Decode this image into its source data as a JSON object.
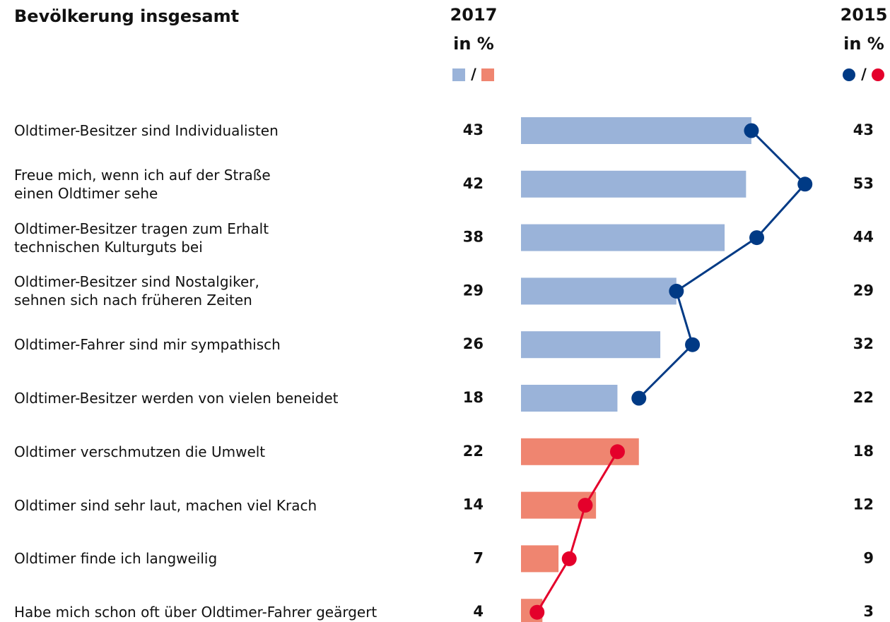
{
  "chart_data": {
    "type": "bar_dot",
    "title": "Bevölkerung insgesamt",
    "unit": "in %",
    "legend_separator": "/",
    "categories": [
      "Oldtimer-Besitzer sind Individualisten",
      "Freue mich, wenn ich auf der Straße\neinen Oldtimer sehe",
      "Oldtimer-Besitzer tragen zum Erhalt\ntechnischen Kulturguts bei",
      "Oldtimer-Besitzer sind Nostalgiker,\nsehnen sich nach früheren Zeiten",
      "Oldtimer-Fahrer sind mir sympathisch",
      "Oldtimer-Besitzer werden von vielen beneidet",
      "Oldtimer verschmutzen die Umwelt",
      "Oldtimer sind sehr laut, machen viel Krach",
      "Oldtimer finde ich langweilig",
      "Habe mich schon oft über Oldtimer-Fahrer geärgert"
    ],
    "series": [
      {
        "name": "2017",
        "values": [
          43,
          42,
          38,
          29,
          26,
          18,
          22,
          14,
          7,
          4
        ],
        "colors": [
          "#9ab3d9",
          "#9ab3d9",
          "#9ab3d9",
          "#9ab3d9",
          "#9ab3d9",
          "#9ab3d9",
          "#ef8570",
          "#ef8570",
          "#ef8570",
          "#ef8570"
        ]
      },
      {
        "name": "2015",
        "values": [
          43,
          53,
          44,
          29,
          32,
          22,
          18,
          12,
          9,
          3
        ],
        "colors": [
          "#003a85",
          "#003a85",
          "#003a85",
          "#003a85",
          "#003a85",
          "#003a85",
          "#e4002b",
          "#e4002b",
          "#e4002b",
          "#e4002b"
        ]
      }
    ]
  }
}
